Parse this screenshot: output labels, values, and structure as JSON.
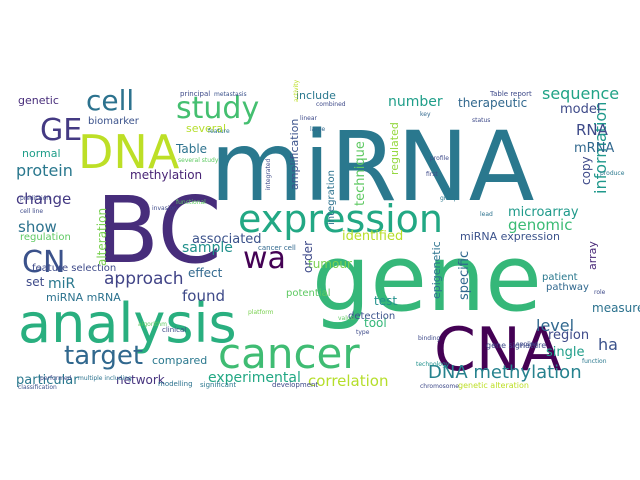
{
  "word_cloud": {
    "background": "#ffffff",
    "words": [
      {
        "text": "miRNA",
        "color": "#2a788e"
      },
      {
        "text": "gene",
        "color": "#35b779"
      },
      {
        "text": "BC",
        "color": "#472d7b"
      },
      {
        "text": "CNA",
        "color": "#440154"
      },
      {
        "text": "analysis",
        "color": "#29af7f"
      },
      {
        "text": "cancer",
        "color": "#3fbc73"
      },
      {
        "text": "expression",
        "color": "#22a884"
      },
      {
        "text": "DNA",
        "color": "#bddf26"
      },
      {
        "text": "study",
        "color": "#44bf70"
      },
      {
        "text": "target",
        "color": "#31688e"
      },
      {
        "text": "cell",
        "color": "#2c728e"
      },
      {
        "text": "CN",
        "color": "#3b528b"
      },
      {
        "text": "GE",
        "color": "#443a83"
      },
      {
        "text": "wa",
        "color": "#440154"
      },
      {
        "text": "DNA methylation",
        "color": "#26828e"
      },
      {
        "text": "correlation",
        "color": "#b5de2b"
      },
      {
        "text": "approach",
        "color": "#414487"
      },
      {
        "text": "protein",
        "color": "#2a788e"
      },
      {
        "text": "sequence",
        "color": "#20a386"
      },
      {
        "text": "microarray",
        "color": "#1f9a8a"
      },
      {
        "text": "information",
        "color": "#1f988b"
      },
      {
        "text": "experimental",
        "color": "#22a884"
      },
      {
        "text": "found",
        "color": "#3e4a89"
      },
      {
        "text": "level",
        "color": "#31688e"
      },
      {
        "text": "ha",
        "color": "#3b528b"
      },
      {
        "text": "change",
        "color": "#443a83"
      },
      {
        "text": "sample",
        "color": "#21918c"
      },
      {
        "text": "associated",
        "color": "#3b528b"
      },
      {
        "text": "genomic",
        "color": "#3bbb75"
      },
      {
        "text": "identified",
        "color": "#b8de29"
      },
      {
        "text": "show",
        "color": "#2c728e"
      },
      {
        "text": "RNA",
        "color": "#3e4a89"
      },
      {
        "text": "mRNA",
        "color": "#31688e"
      },
      {
        "text": "number",
        "color": "#1f9e89"
      },
      {
        "text": "technique",
        "color": "#5ec962"
      },
      {
        "text": "methylation",
        "color": "#482475"
      },
      {
        "text": "Table",
        "color": "#2c728e"
      },
      {
        "text": "several",
        "color": "#b5de2b"
      },
      {
        "text": "normal",
        "color": "#1f9e89"
      },
      {
        "text": "biomarker",
        "color": "#3b528b"
      },
      {
        "text": "genetic",
        "color": "#472c7a"
      },
      {
        "text": "therapeutic",
        "color": "#31688e"
      },
      {
        "text": "model",
        "color": "#3e4a89"
      },
      {
        "text": "regulated",
        "color": "#95d840"
      },
      {
        "text": "copy",
        "color": "#3e4a89"
      },
      {
        "text": "array",
        "color": "#482878"
      },
      {
        "text": "miR",
        "color": "#2a788e"
      },
      {
        "text": "set",
        "color": "#3e4a89"
      },
      {
        "text": "miRNA mRNA",
        "color": "#2c728e"
      },
      {
        "text": "effect",
        "color": "#31688e"
      },
      {
        "text": "tumour",
        "color": "#7ad151"
      },
      {
        "text": "potential",
        "color": "#5ec962"
      },
      {
        "text": "particular",
        "color": "#2a788e"
      },
      {
        "text": "network",
        "color": "#46337e"
      },
      {
        "text": "compared",
        "color": "#2a788e"
      },
      {
        "text": "test",
        "color": "#21918c"
      },
      {
        "text": "tool",
        "color": "#35b779"
      },
      {
        "text": "detection",
        "color": "#3b528b"
      },
      {
        "text": "region",
        "color": "#3e4a89"
      },
      {
        "text": "single",
        "color": "#1f9e89"
      },
      {
        "text": "pathway",
        "color": "#31688e"
      },
      {
        "text": "patient",
        "color": "#2a788e"
      },
      {
        "text": "measure",
        "color": "#2c728e"
      },
      {
        "text": "miRNA expression",
        "color": "#3b528b"
      },
      {
        "text": "integration",
        "color": "#2c728e"
      },
      {
        "text": "amplification",
        "color": "#3b528b"
      },
      {
        "text": "include",
        "color": "#2a788e"
      },
      {
        "text": "order",
        "color": "#3e4a89"
      },
      {
        "text": "specific",
        "color": "#31688e"
      },
      {
        "text": "epigenetic",
        "color": "#2c728e"
      },
      {
        "text": "regulation",
        "color": "#5ec962"
      },
      {
        "text": "feature selection",
        "color": "#3e4a89"
      },
      {
        "text": "alteration",
        "color": "#7ad151"
      },
      {
        "text": "gene signature",
        "color": "#3e4a89"
      },
      {
        "text": "genetic alteration",
        "color": "#bddf26"
      },
      {
        "text": "development",
        "color": "#3e4a89"
      },
      {
        "text": "significant",
        "color": "#2a788e"
      },
      {
        "text": "clinical",
        "color": "#3e4a89"
      },
      {
        "text": "modelling",
        "color": "#2c728e"
      },
      {
        "text": "cancer cell",
        "color": "#31688e"
      },
      {
        "text": "Table report",
        "color": "#3e4a89"
      },
      {
        "text": "principal",
        "color": "#3e4a89"
      },
      {
        "text": "several study",
        "color": "#5ec962"
      },
      {
        "text": "metastasis",
        "color": "#3b528b"
      },
      {
        "text": "prediction",
        "color": "#3e4a89"
      },
      {
        "text": "performed",
        "color": "#3e4a89"
      },
      {
        "text": "multiple including",
        "color": "#2c728e"
      },
      {
        "text": "cell line",
        "color": "#3e4a89"
      },
      {
        "text": "technology",
        "color": "#21918c"
      },
      {
        "text": "binding",
        "color": "#3e4a89"
      },
      {
        "text": "function",
        "color": "#2a788e"
      },
      {
        "text": "platform",
        "color": "#7ad151"
      },
      {
        "text": "classification",
        "color": "#3b528b"
      },
      {
        "text": "chromosome",
        "color": "#3e4a89"
      },
      {
        "text": "applied",
        "color": "#3e4a89"
      },
      {
        "text": "lead",
        "color": "#2c728e"
      },
      {
        "text": "large",
        "color": "#31688e"
      },
      {
        "text": "linear",
        "color": "#3e4a89"
      },
      {
        "text": "first",
        "color": "#3e4a89"
      },
      {
        "text": "group",
        "color": "#2a788e"
      },
      {
        "text": "algorithm",
        "color": "#5ec962"
      },
      {
        "text": "combined",
        "color": "#3e4a89"
      },
      {
        "text": "activity",
        "color": "#bddf26"
      },
      {
        "text": "integrated",
        "color": "#3e4a89"
      },
      {
        "text": "functional",
        "color": "#5ec962"
      },
      {
        "text": "invasion",
        "color": "#3e4a89"
      },
      {
        "text": "feature",
        "color": "#2c728e"
      },
      {
        "text": "key",
        "color": "#31688e"
      },
      {
        "text": "profile",
        "color": "#3e4a89"
      },
      {
        "text": "status",
        "color": "#3e4a89"
      },
      {
        "text": "produce",
        "color": "#2a788e"
      },
      {
        "text": "role",
        "color": "#3e4a89"
      },
      {
        "text": "value",
        "color": "#5ec962"
      },
      {
        "text": "type",
        "color": "#3e4a89"
      }
    ]
  }
}
